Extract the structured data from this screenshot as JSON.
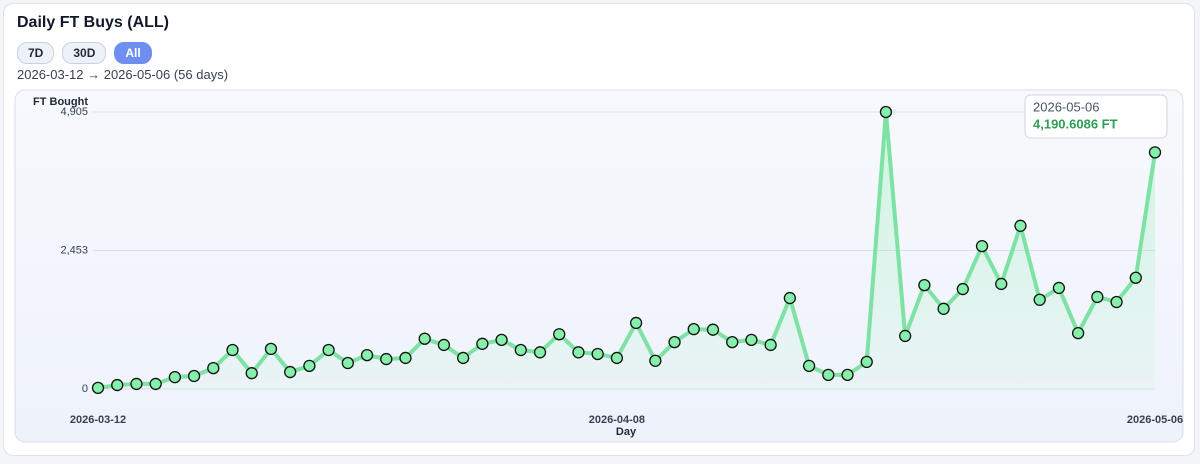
{
  "chart_data": {
    "type": "line",
    "title": "Daily FT Buys (ALL)",
    "range_buttons": [
      "7D",
      "30D",
      "All"
    ],
    "active_button": "All",
    "date_range": "2026-03-12 → 2026-05-06 (56 days)",
    "y_label": "FT Bought",
    "x_label": "Day",
    "categories": [
      "2026-03-12",
      null,
      null,
      null,
      null,
      null,
      null,
      null,
      null,
      null,
      null,
      null,
      null,
      null,
      null,
      null,
      null,
      null,
      null,
      null,
      null,
      null,
      null,
      null,
      null,
      null,
      null,
      "2026-04-08",
      null,
      null,
      null,
      null,
      null,
      null,
      null,
      null,
      null,
      null,
      null,
      null,
      null,
      null,
      null,
      null,
      null,
      null,
      null,
      null,
      null,
      null,
      null,
      null,
      null,
      null,
      null,
      "2026-05-06"
    ],
    "series": [
      {
        "name": "FT Bought",
        "color": "#7ee2a4",
        "values": [
          20,
          70,
          90,
          90,
          210,
          230,
          370,
          690,
          280,
          710,
          300,
          410,
          690,
          460,
          600,
          530,
          550,
          890,
          780,
          550,
          800,
          870,
          690,
          650,
          970,
          650,
          620,
          550,
          1170,
          500,
          830,
          1060,
          1050,
          830,
          870,
          780,
          1610,
          410,
          250,
          250,
          480,
          4905,
          940,
          1840,
          1420,
          1770,
          2530,
          1860,
          2890,
          1580,
          1790,
          990,
          1630,
          1540,
          1970,
          4190.6086
        ]
      }
    ],
    "ylim": [
      0,
      4905
    ],
    "yticks": [
      0,
      {
        "value": 2453,
        "label": "2,453"
      },
      {
        "value": 4905,
        "label": "4,905"
      }
    ],
    "grid": true,
    "tooltip": {
      "index": 55,
      "label": "4,190.6086 FT"
    }
  }
}
